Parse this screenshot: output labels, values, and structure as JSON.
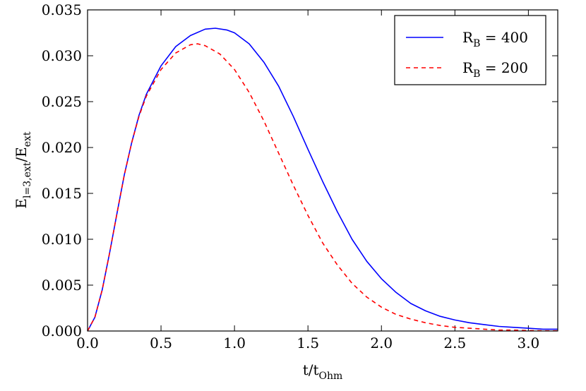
{
  "chart_data": {
    "type": "line",
    "xlabel": "t/t",
    "xlabel_sub": "Ohm",
    "ylabel": "E",
    "ylabel_sub": "l=3,ext",
    "ylabel_tail": "/E",
    "ylabel_tail_sub": "ext",
    "xlim": [
      0,
      3.2
    ],
    "ylim": [
      0,
      0.035
    ],
    "x_ticks": [
      "0.0",
      "0.5",
      "1.0",
      "1.5",
      "2.0",
      "2.5",
      "3.0"
    ],
    "y_ticks": [
      "0.000",
      "0.005",
      "0.010",
      "0.015",
      "0.020",
      "0.025",
      "0.030",
      "0.035"
    ],
    "grid": false,
    "legend_position": "top-right",
    "series": [
      {
        "name": "R",
        "name_sub": "B",
        "name_value": " = 400",
        "color": "#0000ff",
        "style": "solid",
        "points": [
          [
            0,
            0
          ],
          [
            0.05,
            0.0015
          ],
          [
            0.1,
            0.0045
          ],
          [
            0.15,
            0.0085
          ],
          [
            0.2,
            0.0128
          ],
          [
            0.25,
            0.017
          ],
          [
            0.3,
            0.0205
          ],
          [
            0.35,
            0.0235
          ],
          [
            0.4,
            0.0258
          ],
          [
            0.5,
            0.0289
          ],
          [
            0.6,
            0.031
          ],
          [
            0.7,
            0.0322
          ],
          [
            0.8,
            0.0329
          ],
          [
            0.87,
            0.033
          ],
          [
            0.95,
            0.0328
          ],
          [
            1.0,
            0.0325
          ],
          [
            1.1,
            0.0313
          ],
          [
            1.2,
            0.0293
          ],
          [
            1.3,
            0.0267
          ],
          [
            1.4,
            0.0234
          ],
          [
            1.5,
            0.0198
          ],
          [
            1.6,
            0.0163
          ],
          [
            1.7,
            0.013
          ],
          [
            1.8,
            0.01
          ],
          [
            1.9,
            0.0076
          ],
          [
            2.0,
            0.0057
          ],
          [
            2.1,
            0.0042
          ],
          [
            2.2,
            0.003
          ],
          [
            2.3,
            0.0022
          ],
          [
            2.4,
            0.0016
          ],
          [
            2.5,
            0.0012
          ],
          [
            2.6,
            0.0009
          ],
          [
            2.7,
            0.0007
          ],
          [
            2.8,
            0.0005
          ],
          [
            2.9,
            0.0004
          ],
          [
            3.0,
            0.0003
          ],
          [
            3.1,
            0.0002
          ],
          [
            3.2,
            0.0002
          ]
        ]
      },
      {
        "name": "R",
        "name_sub": "B",
        "name_value": " = 200",
        "color": "#ff0000",
        "style": "dashed",
        "points": [
          [
            0,
            0
          ],
          [
            0.05,
            0.0015
          ],
          [
            0.1,
            0.0045
          ],
          [
            0.15,
            0.0085
          ],
          [
            0.2,
            0.0128
          ],
          [
            0.25,
            0.017
          ],
          [
            0.3,
            0.0205
          ],
          [
            0.35,
            0.0234
          ],
          [
            0.4,
            0.0256
          ],
          [
            0.5,
            0.0285
          ],
          [
            0.6,
            0.0303
          ],
          [
            0.7,
            0.0312
          ],
          [
            0.75,
            0.0313
          ],
          [
            0.8,
            0.0311
          ],
          [
            0.9,
            0.0302
          ],
          [
            1.0,
            0.0285
          ],
          [
            1.1,
            0.026
          ],
          [
            1.2,
            0.0229
          ],
          [
            1.3,
            0.0194
          ],
          [
            1.4,
            0.0159
          ],
          [
            1.5,
            0.0126
          ],
          [
            1.6,
            0.0096
          ],
          [
            1.7,
            0.0072
          ],
          [
            1.8,
            0.0052
          ],
          [
            1.9,
            0.0037
          ],
          [
            2.0,
            0.0026
          ],
          [
            2.1,
            0.0018
          ],
          [
            2.2,
            0.0013
          ],
          [
            2.3,
            0.0009
          ],
          [
            2.4,
            0.0006
          ],
          [
            2.5,
            0.0004
          ],
          [
            2.6,
            0.0003
          ],
          [
            2.7,
            0.0002
          ],
          [
            2.8,
            0.0001
          ],
          [
            2.9,
            0.0001
          ],
          [
            3.0,
            5e-05
          ],
          [
            3.1,
            3e-05
          ],
          [
            3.2,
            2e-05
          ]
        ]
      }
    ]
  }
}
